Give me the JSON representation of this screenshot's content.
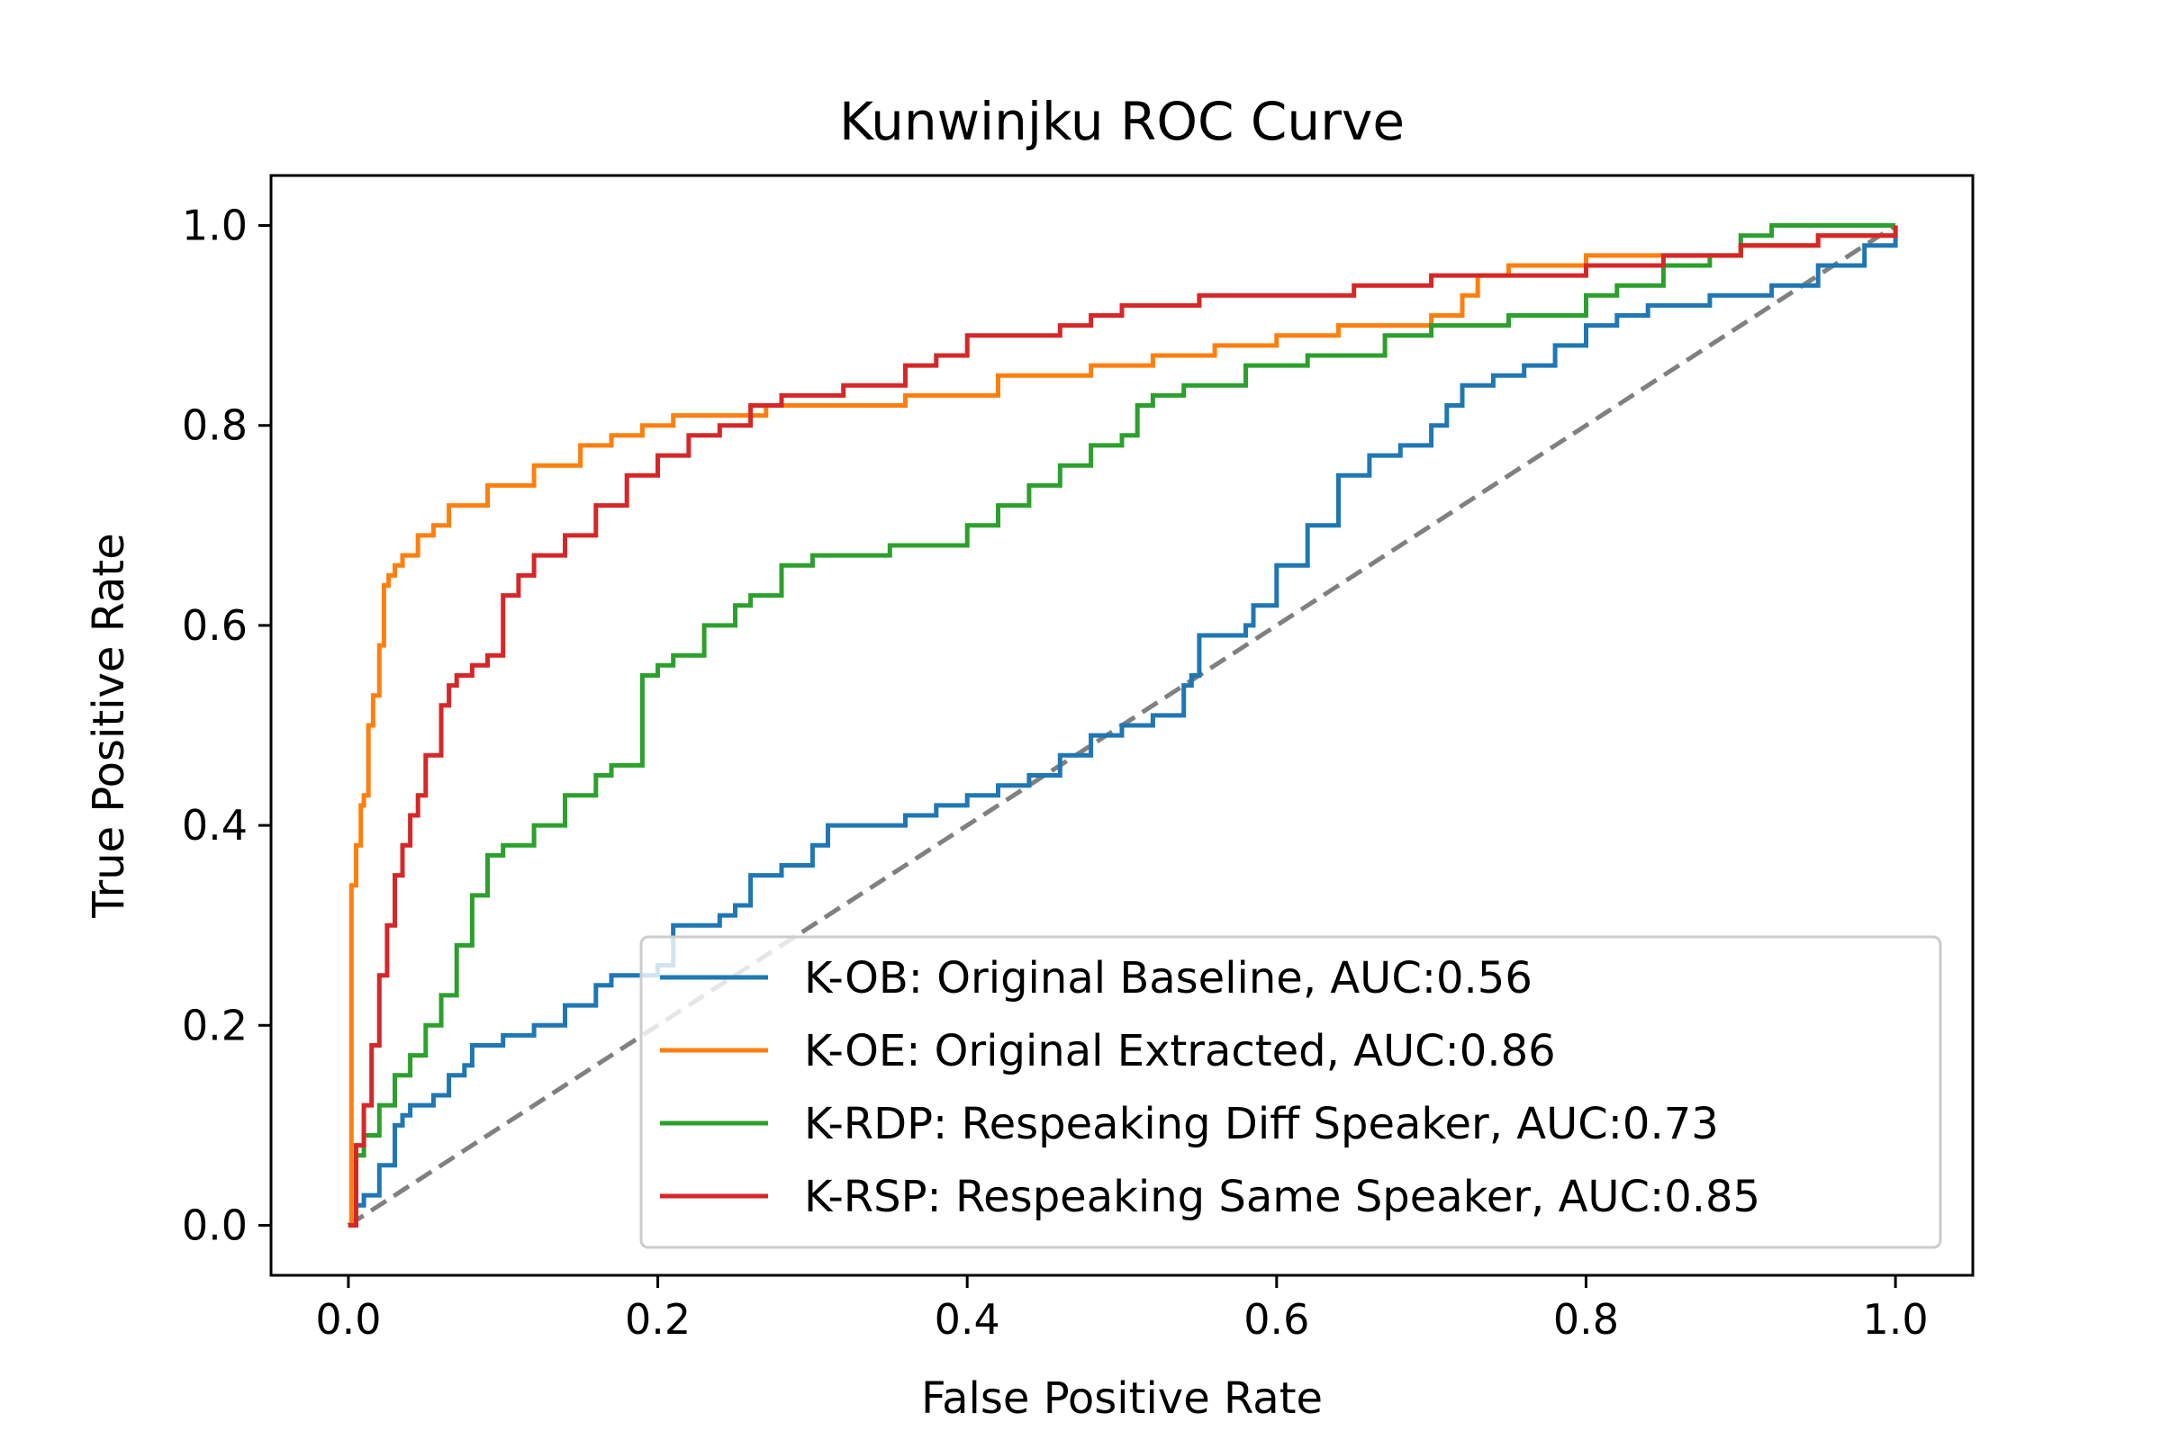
{
  "chart_data": {
    "type": "line",
    "title": "Kunwinjku ROC Curve",
    "xlabel": "False Positive Rate",
    "ylabel": "True Positive Rate",
    "xlim": [
      -0.05,
      1.05
    ],
    "ylim": [
      -0.05,
      1.05
    ],
    "xticks": [
      "0.0",
      "0.2",
      "0.4",
      "0.6",
      "0.8",
      "1.0"
    ],
    "yticks": [
      "0.0",
      "0.2",
      "0.4",
      "0.6",
      "0.8",
      "1.0"
    ],
    "grid": false,
    "legend_position": "lower-right",
    "diagonal": {
      "color": "#808080",
      "style": "dashed",
      "x": [
        0,
        1
      ],
      "y": [
        0,
        1
      ]
    },
    "series": [
      {
        "name": "K-OB: Original Baseline, AUC:0.56",
        "color": "#1f77b4",
        "x": [
          0,
          0.005,
          0.01,
          0.02,
          0.03,
          0.035,
          0.04,
          0.055,
          0.065,
          0.075,
          0.08,
          0.085,
          0.1,
          0.12,
          0.14,
          0.16,
          0.17,
          0.18,
          0.2,
          0.21,
          0.22,
          0.24,
          0.25,
          0.26,
          0.28,
          0.3,
          0.31,
          0.33,
          0.36,
          0.38,
          0.4,
          0.42,
          0.44,
          0.46,
          0.48,
          0.5,
          0.52,
          0.54,
          0.545,
          0.55,
          0.56,
          0.58,
          0.585,
          0.6,
          0.62,
          0.64,
          0.66,
          0.68,
          0.7,
          0.71,
          0.72,
          0.74,
          0.76,
          0.78,
          0.8,
          0.82,
          0.84,
          0.86,
          0.88,
          0.9,
          0.92,
          0.95,
          0.98,
          1.0
        ],
        "y": [
          0,
          0.02,
          0.03,
          0.06,
          0.1,
          0.11,
          0.12,
          0.13,
          0.15,
          0.16,
          0.18,
          0.18,
          0.19,
          0.2,
          0.22,
          0.24,
          0.25,
          0.25,
          0.26,
          0.3,
          0.3,
          0.31,
          0.32,
          0.35,
          0.36,
          0.38,
          0.4,
          0.4,
          0.41,
          0.42,
          0.43,
          0.44,
          0.45,
          0.47,
          0.49,
          0.5,
          0.51,
          0.54,
          0.55,
          0.59,
          0.59,
          0.6,
          0.62,
          0.66,
          0.7,
          0.75,
          0.77,
          0.78,
          0.8,
          0.82,
          0.84,
          0.85,
          0.86,
          0.88,
          0.9,
          0.91,
          0.92,
          0.92,
          0.93,
          0.93,
          0.94,
          0.96,
          0.98,
          1.0
        ]
      },
      {
        "name": "K-OE: Original Extracted, AUC:0.86",
        "color": "#ff7f0e",
        "x": [
          0,
          0.002,
          0.005,
          0.008,
          0.01,
          0.013,
          0.016,
          0.02,
          0.023,
          0.026,
          0.03,
          0.035,
          0.045,
          0.055,
          0.065,
          0.07,
          0.09,
          0.12,
          0.15,
          0.17,
          0.19,
          0.21,
          0.24,
          0.27,
          0.32,
          0.36,
          0.42,
          0.48,
          0.52,
          0.56,
          0.6,
          0.64,
          0.7,
          0.72,
          0.73,
          0.75,
          0.8,
          0.9,
          0.95,
          1.0
        ],
        "y": [
          0,
          0.34,
          0.38,
          0.42,
          0.43,
          0.5,
          0.53,
          0.58,
          0.64,
          0.65,
          0.66,
          0.67,
          0.69,
          0.7,
          0.72,
          0.72,
          0.74,
          0.76,
          0.78,
          0.79,
          0.8,
          0.81,
          0.81,
          0.82,
          0.82,
          0.83,
          0.85,
          0.86,
          0.87,
          0.88,
          0.89,
          0.9,
          0.91,
          0.93,
          0.95,
          0.96,
          0.97,
          0.98,
          0.99,
          1.0
        ]
      },
      {
        "name": "K-RDP: Respeaking Diff Speaker, AUC:0.73",
        "color": "#2ca02c",
        "x": [
          0,
          0.005,
          0.01,
          0.02,
          0.03,
          0.04,
          0.05,
          0.06,
          0.07,
          0.08,
          0.09,
          0.1,
          0.12,
          0.14,
          0.16,
          0.17,
          0.19,
          0.2,
          0.21,
          0.23,
          0.25,
          0.26,
          0.28,
          0.3,
          0.35,
          0.4,
          0.42,
          0.44,
          0.46,
          0.48,
          0.5,
          0.51,
          0.52,
          0.54,
          0.58,
          0.62,
          0.65,
          0.67,
          0.7,
          0.75,
          0.8,
          0.82,
          0.85,
          0.88,
          0.9,
          0.92,
          0.95,
          1.0
        ],
        "y": [
          0,
          0.07,
          0.09,
          0.12,
          0.15,
          0.17,
          0.2,
          0.23,
          0.28,
          0.33,
          0.37,
          0.38,
          0.4,
          0.43,
          0.45,
          0.46,
          0.55,
          0.56,
          0.57,
          0.6,
          0.62,
          0.63,
          0.66,
          0.67,
          0.68,
          0.7,
          0.72,
          0.74,
          0.76,
          0.78,
          0.79,
          0.82,
          0.83,
          0.84,
          0.86,
          0.87,
          0.87,
          0.89,
          0.9,
          0.91,
          0.93,
          0.94,
          0.96,
          0.97,
          0.99,
          1.0,
          1.0,
          1.0
        ]
      },
      {
        "name": "K-RSP: Respeaking Same Speaker, AUC:0.85",
        "color": "#d62728",
        "x": [
          0,
          0.005,
          0.01,
          0.015,
          0.02,
          0.025,
          0.03,
          0.035,
          0.04,
          0.045,
          0.05,
          0.06,
          0.065,
          0.07,
          0.08,
          0.09,
          0.1,
          0.11,
          0.12,
          0.14,
          0.16,
          0.18,
          0.2,
          0.22,
          0.24,
          0.26,
          0.28,
          0.32,
          0.36,
          0.38,
          0.4,
          0.42,
          0.46,
          0.48,
          0.5,
          0.55,
          0.6,
          0.65,
          0.7,
          0.75,
          0.8,
          0.85,
          0.9,
          0.95,
          1.0
        ],
        "y": [
          0,
          0.08,
          0.12,
          0.18,
          0.25,
          0.3,
          0.35,
          0.38,
          0.41,
          0.43,
          0.47,
          0.52,
          0.54,
          0.55,
          0.56,
          0.57,
          0.63,
          0.65,
          0.67,
          0.69,
          0.72,
          0.75,
          0.77,
          0.79,
          0.8,
          0.82,
          0.83,
          0.84,
          0.86,
          0.87,
          0.89,
          0.89,
          0.9,
          0.91,
          0.92,
          0.93,
          0.93,
          0.94,
          0.95,
          0.95,
          0.96,
          0.97,
          0.98,
          0.99,
          1.0
        ]
      }
    ]
  }
}
